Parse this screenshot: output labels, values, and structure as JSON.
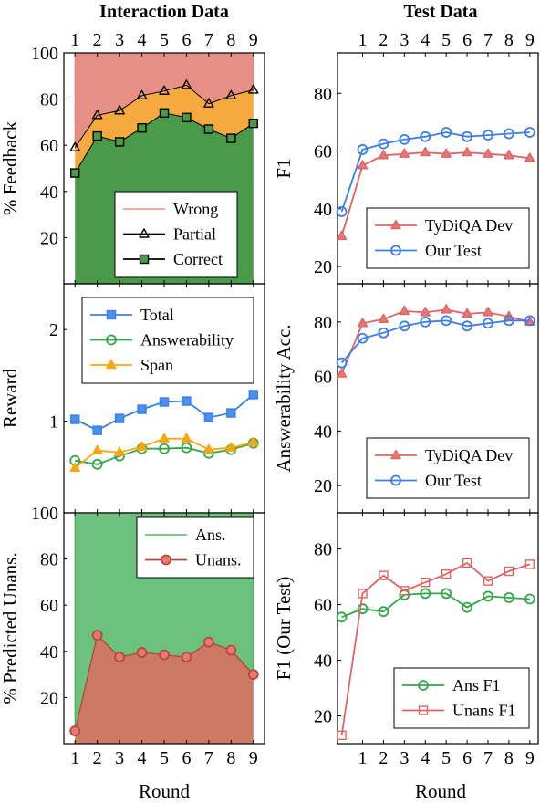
{
  "figure": {
    "col_titles": [
      "Interaction Data",
      "Test Data"
    ],
    "xlabel": "Round",
    "rounds": [
      "1",
      "2",
      "3",
      "4",
      "5",
      "6",
      "7",
      "8",
      "9"
    ]
  },
  "colors": {
    "wrong": "#e07b70",
    "partial": "#f4a02a",
    "correct": "#4a9a4a",
    "blue": "#3b7ee6",
    "blue_fill": "#4b8ff0",
    "red": "#e06464",
    "red_fill": "#e47878",
    "green": "#33a64a",
    "green_fill": "#6cc27c",
    "orange": "#f8a70f",
    "unans_fill": "#c96a55",
    "unans_marker": "#e87878"
  },
  "chart_data": [
    {
      "id": "feedback",
      "type": "area",
      "ylabel": "% Feedback",
      "ylim": [
        0,
        100
      ],
      "yticks": [
        20,
        40,
        60,
        80,
        100
      ],
      "x": [
        1,
        2,
        3,
        4,
        5,
        6,
        7,
        8,
        9
      ],
      "series": [
        {
          "name": "Wrong",
          "values": [
            100,
            100,
            100,
            100,
            100,
            100,
            100,
            100,
            100
          ]
        },
        {
          "name": "Partial",
          "values": [
            59,
            73,
            75,
            81.5,
            83.5,
            86,
            78,
            81.5,
            84
          ]
        },
        {
          "name": "Correct",
          "values": [
            48,
            64,
            61.5,
            67.5,
            74,
            72,
            67,
            63,
            69.5
          ]
        }
      ],
      "legend": "bottom-right"
    },
    {
      "id": "test_f1",
      "type": "line",
      "ylabel": "F1",
      "ylim": [
        14,
        94
      ],
      "yticks": [
        20,
        40,
        60,
        80
      ],
      "x": [
        0,
        1,
        2,
        3,
        4,
        5,
        6,
        7,
        8,
        9
      ],
      "series": [
        {
          "name": "TyDiQA Dev",
          "values": [
            30.5,
            55,
            58.5,
            59,
            59.5,
            59,
            59.5,
            59,
            58.5,
            57.5
          ]
        },
        {
          "name": "Our Test",
          "values": [
            39,
            60.5,
            62.5,
            64,
            65,
            66.5,
            65,
            65.5,
            66,
            66.5
          ]
        }
      ],
      "legend": "bottom-right"
    },
    {
      "id": "reward",
      "type": "line",
      "ylabel": "Reward",
      "ylim": [
        0,
        2.5
      ],
      "yticks": [
        1,
        2
      ],
      "x": [
        1,
        2,
        3,
        4,
        5,
        6,
        7,
        8,
        9
      ],
      "series": [
        {
          "name": "Total",
          "values": [
            1.02,
            0.9,
            1.03,
            1.13,
            1.21,
            1.22,
            1.04,
            1.09,
            1.29
          ]
        },
        {
          "name": "Answerability",
          "values": [
            0.57,
            0.53,
            0.62,
            0.7,
            0.7,
            0.71,
            0.65,
            0.69,
            0.76
          ]
        },
        {
          "name": "Span",
          "values": [
            0.49,
            0.68,
            0.66,
            0.72,
            0.81,
            0.81,
            0.69,
            0.71,
            0.77
          ]
        }
      ],
      "legend": "top-left"
    },
    {
      "id": "answerability",
      "type": "line",
      "ylabel": "Answerability Acc.",
      "ylim": [
        10,
        94
      ],
      "yticks": [
        20,
        40,
        60,
        80
      ],
      "x": [
        0,
        1,
        2,
        3,
        4,
        5,
        6,
        7,
        8,
        9
      ],
      "series": [
        {
          "name": "TyDiQA Dev",
          "values": [
            61,
            79.5,
            81,
            84,
            83.5,
            84.5,
            83,
            83.5,
            82,
            80
          ]
        },
        {
          "name": "Our Test",
          "values": [
            65,
            74,
            76,
            78.5,
            80,
            80.5,
            78.5,
            79.5,
            80.5,
            80.5
          ]
        }
      ],
      "legend": "bottom-right"
    },
    {
      "id": "pred_unans",
      "type": "area",
      "ylabel": "% Predicted Unans.",
      "ylim": [
        0,
        100
      ],
      "yticks": [
        20,
        40,
        60,
        80,
        100
      ],
      "x": [
        1,
        2,
        3,
        4,
        5,
        6,
        7,
        8,
        9
      ],
      "series": [
        {
          "name": "Ans.",
          "values": [
            100,
            100,
            100,
            100,
            100,
            100,
            100,
            100,
            100
          ]
        },
        {
          "name": "Unans.",
          "values": [
            5.5,
            47,
            37.5,
            39.5,
            38.5,
            37.5,
            44,
            40.5,
            30
          ]
        }
      ],
      "legend": "top-right"
    },
    {
      "id": "our_test_f1",
      "type": "line",
      "ylabel": "F1 (Our Test)",
      "ylim": [
        10,
        93
      ],
      "yticks": [
        20,
        40,
        60,
        80
      ],
      "x": [
        0,
        1,
        2,
        3,
        4,
        5,
        6,
        7,
        8,
        9
      ],
      "series": [
        {
          "name": "Ans F1",
          "values": [
            55.5,
            58.5,
            57.5,
            63.5,
            64,
            64,
            59,
            63,
            62.5,
            62
          ]
        },
        {
          "name": "Unans F1",
          "values": [
            13,
            64,
            70.5,
            65,
            68,
            71,
            75,
            68.5,
            72,
            74.5
          ]
        }
      ],
      "legend": "bottom-right"
    }
  ]
}
